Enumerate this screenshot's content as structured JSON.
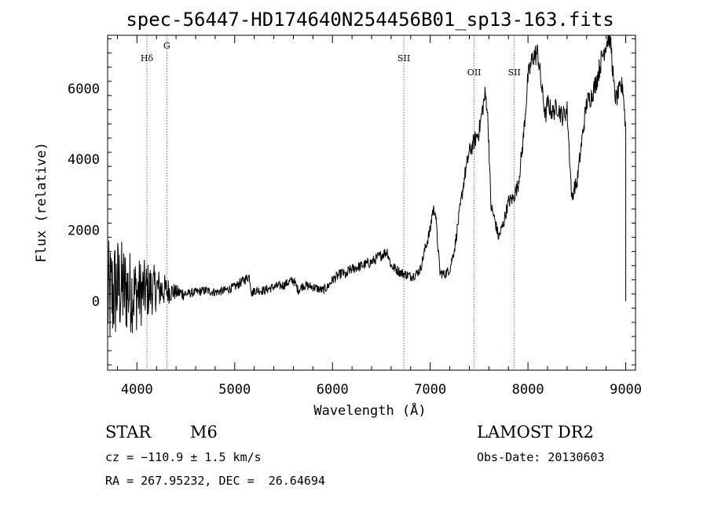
{
  "chart_data": {
    "type": "line",
    "title": "spec-56447-HD174640N254456B01_sp13-163.fits",
    "xlabel": "Wavelength (Å)",
    "ylabel": "Flux (relative)",
    "xlim": [
      3700,
      9100
    ],
    "ylim": [
      -1950,
      7500
    ],
    "xticks": [
      4000,
      5000,
      6000,
      7000,
      8000,
      9000
    ],
    "yticks": [
      0,
      2000,
      4000,
      6000
    ],
    "series": [
      {
        "x": [
          3700,
          3800,
          3900,
          4000,
          4100,
          4200,
          4300,
          4400,
          4500,
          4600,
          4700,
          4800,
          4900,
          5000,
          5100,
          5150,
          5175,
          5200,
          5300,
          5400,
          5500,
          5600,
          5650,
          5700,
          5800,
          5900,
          5950,
          6000,
          6100,
          6150,
          6160,
          6200,
          6300,
          6400,
          6500,
          6560,
          6600,
          6700,
          6800,
          6850,
          6900,
          6950,
          7000,
          7020,
          7050,
          7080,
          7100,
          7150,
          7200,
          7250,
          7300,
          7350,
          7400,
          7450,
          7500,
          7540,
          7560,
          7580,
          7600,
          7620,
          7650,
          7700,
          7750,
          7800,
          7850,
          7900,
          7950,
          8000,
          8050,
          8100,
          8150,
          8180,
          8200,
          8250,
          8300,
          8350,
          8400,
          8450,
          8470,
          8500,
          8550,
          8600,
          8650,
          8700,
          8750,
          8800,
          8830,
          8850,
          8880,
          8900,
          8950,
          8970,
          9000
        ],
        "y": [
          0,
          400,
          300,
          200,
          300,
          350,
          300,
          250,
          200,
          250,
          300,
          250,
          300,
          400,
          600,
          700,
          200,
          300,
          300,
          400,
          450,
          600,
          300,
          450,
          400,
          300,
          400,
          600,
          800,
          700,
          850,
          900,
          1000,
          1100,
          1300,
          1400,
          1000,
          800,
          700,
          750,
          900,
          1500,
          2000,
          2500,
          2600,
          1500,
          800,
          750,
          900,
          1500,
          2500,
          3500,
          4200,
          4500,
          4800,
          5500,
          5800,
          5600,
          4500,
          2700,
          2400,
          1800,
          2200,
          2800,
          2900,
          3300,
          4500,
          6300,
          6900,
          7000,
          5800,
          5200,
          5600,
          5300,
          5500,
          5200,
          5400,
          2800,
          3200,
          3300,
          4500,
          5600,
          5800,
          6200,
          6800,
          7300,
          7500,
          7200,
          6000,
          5700,
          6000,
          6100,
          4800
        ]
      }
    ],
    "noise_region_x": [
      3700,
      4500
    ],
    "spectral_lines": [
      {
        "name": "Hδ",
        "x": 4102
      },
      {
        "name": "G",
        "x": 4305
      },
      {
        "name": "SII",
        "x": 6730
      },
      {
        "name": "OII",
        "x": 7450
      },
      {
        "name": "SII",
        "x": 7860
      }
    ],
    "grid": false,
    "legend": "none"
  },
  "info": {
    "class_label": "STAR",
    "subclass_label": "M6",
    "survey": "LAMOST DR2",
    "cz_text": "cz = −110.9 ± 1.5 km/s",
    "obs_date_text": "Obs-Date: 20130603",
    "radec_text": "RA = 267.95232, DEC =  26.64694"
  },
  "colors": {
    "line": "#000000",
    "marker_line": "#b22222",
    "background": "#ffffff"
  }
}
